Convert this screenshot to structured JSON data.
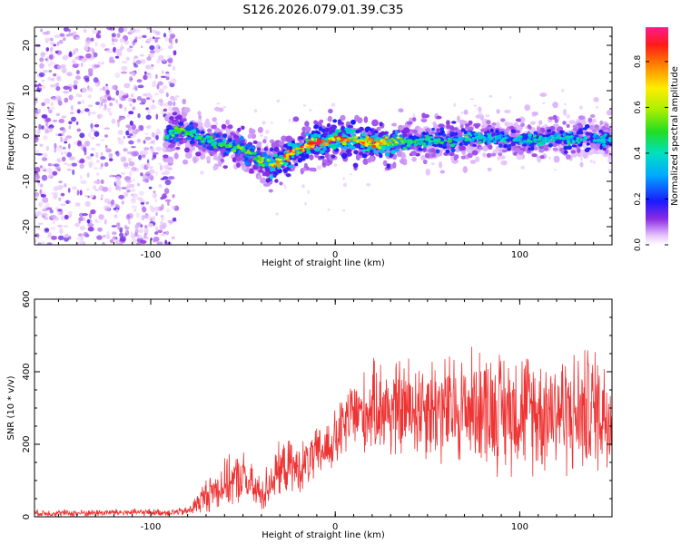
{
  "title": "S126.2026.079.01.39.C35",
  "chart_data": [
    {
      "type": "heatmap",
      "name": "spectrogram",
      "xlabel": "Height of straight line (km)",
      "ylabel": "Frequency (Hz)",
      "xlim": [
        -163,
        150
      ],
      "ylim": [
        -24,
        24
      ],
      "xticks": [
        -100,
        0,
        100
      ],
      "yticks": [
        -20,
        -10,
        0,
        10,
        20
      ],
      "colorbar": {
        "label": "Normalized spectral amplitude",
        "range": [
          0,
          0.95
        ],
        "ticks": [
          0.0,
          0.2,
          0.4,
          0.6,
          0.8
        ],
        "tick_labels": [
          "0.0",
          "0.2",
          "0.4",
          "0.6",
          "0.8"
        ]
      },
      "noise_region_x": [
        -163,
        -90
      ],
      "signal_trace": {
        "x": [
          -92,
          -85,
          -78,
          -70,
          -60,
          -50,
          -40,
          -33,
          -28,
          -20,
          -15,
          -10,
          -5,
          0,
          10,
          20,
          30,
          40,
          50,
          60,
          70,
          80,
          90,
          100,
          110,
          120,
          130,
          140,
          150
        ],
        "y": [
          0,
          1.5,
          0.5,
          -1,
          -2,
          -3,
          -5.5,
          -6.5,
          -5,
          -3,
          -2,
          -1.5,
          -1.5,
          -0.5,
          -1,
          -1.5,
          -1.5,
          -1.5,
          -1,
          -1,
          -0.5,
          -0.5,
          -0.5,
          -1,
          -1,
          -0.5,
          -0.5,
          -0.5,
          -1
        ],
        "peak_amplitude": [
          0.55,
          0.6,
          0.55,
          0.5,
          0.55,
          0.6,
          0.65,
          0.85,
          0.9,
          0.9,
          0.95,
          0.95,
          0.9,
          0.9,
          0.9,
          0.9,
          0.8,
          0.55,
          0.5,
          0.5,
          0.5,
          0.45,
          0.45,
          0.45,
          0.45,
          0.45,
          0.45,
          0.4,
          0.4
        ]
      }
    },
    {
      "type": "line",
      "name": "snr",
      "xlabel": "Height of straight line (km)",
      "ylabel": "SNR (10 * v/v)",
      "xlim": [
        -163,
        150
      ],
      "ylim": [
        0,
        600
      ],
      "xticks": [
        -100,
        0,
        100
      ],
      "yticks": [
        0,
        200,
        400,
        600
      ],
      "color": "#ee3333",
      "series": [
        {
          "name": "SNR",
          "x": [
            -163,
            -140,
            -120,
            -100,
            -90,
            -80,
            -75,
            -70,
            -60,
            -50,
            -45,
            -40,
            -35,
            -30,
            -25,
            -20,
            -15,
            -10,
            -5,
            0,
            5,
            10,
            15,
            20,
            25,
            30,
            40,
            50,
            60,
            70,
            80,
            90,
            100,
            110,
            120,
            130,
            140,
            150
          ],
          "values": [
            10,
            10,
            12,
            12,
            12,
            15,
            35,
            60,
            90,
            110,
            80,
            60,
            100,
            130,
            140,
            130,
            150,
            170,
            190,
            210,
            250,
            290,
            280,
            300,
            310,
            290,
            300,
            310,
            290,
            300,
            310,
            290,
            300,
            290,
            300,
            280,
            300,
            290
          ],
          "spread": [
            8,
            8,
            8,
            8,
            8,
            10,
            25,
            40,
            55,
            60,
            50,
            45,
            55,
            60,
            60,
            55,
            60,
            60,
            65,
            70,
            80,
            90,
            95,
            100,
            110,
            115,
            120,
            125,
            130,
            130,
            135,
            140,
            140,
            140,
            140,
            145,
            145,
            145
          ]
        }
      ]
    }
  ]
}
